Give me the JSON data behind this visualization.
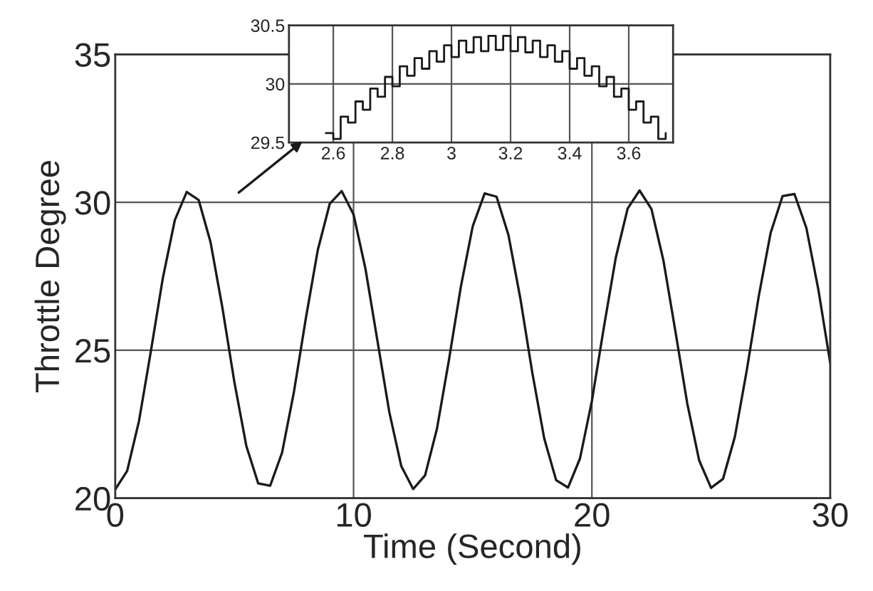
{
  "chart_data": [
    {
      "type": "line",
      "xlabel": "Time (Second)",
      "ylabel": "Throttle Degree",
      "xlim": [
        0,
        30
      ],
      "ylim": [
        20,
        35
      ],
      "xticks": [
        0,
        10,
        20,
        30
      ],
      "yticks": [
        20,
        25,
        30,
        35
      ],
      "grid": true,
      "line_style": "solid",
      "series": [
        {
          "color": "#1a1a1a",
          "x": [
            0,
            0.5,
            1,
            1.5,
            2,
            2.5,
            3,
            3.5,
            4,
            4.5,
            5,
            5.5,
            6,
            6.5,
            7,
            7.5,
            8,
            8.5,
            9,
            9.5,
            10,
            10.5,
            11,
            11.5,
            12,
            12.5,
            13,
            13.5,
            14,
            14.5,
            15,
            15.5,
            16,
            16.5,
            17,
            17.5,
            18,
            18.5,
            19,
            19.5,
            20,
            20.5,
            21,
            21.5,
            22,
            22.5,
            23,
            23.5,
            24,
            24.5,
            25,
            25.5,
            26,
            26.5,
            27,
            27.5,
            28,
            28.5,
            29,
            29.5,
            30
          ],
          "values": [
            20.3,
            20.92,
            22.62,
            24.99,
            27.45,
            29.4,
            30.35,
            30.08,
            28.65,
            26.42,
            23.92,
            21.77,
            20.5,
            20.42,
            21.54,
            23.6,
            26.09,
            28.39,
            29.95,
            30.38,
            29.59,
            27.75,
            25.33,
            22.91,
            21.09,
            20.31,
            20.77,
            22.35,
            24.66,
            27.14,
            29.19,
            30.3,
            30.19,
            28.89,
            26.74,
            24.24,
            22.02,
            20.61,
            20.36,
            21.34,
            23.29,
            25.76,
            28.12,
            29.79,
            30.4,
            29.77,
            28.04,
            25.66,
            23.21,
            21.28,
            20.35,
            20.65,
            22.08,
            24.33,
            26.82,
            28.97,
            30.21,
            30.28,
            29.13,
            27.06,
            24.57
          ]
        }
      ]
    },
    {
      "type": "step",
      "xlim": [
        2.45,
        3.75
      ],
      "ylim": [
        29.5,
        30.5
      ],
      "xticks": [
        2.6,
        2.8,
        3,
        3.2,
        3.4,
        3.6
      ],
      "yticks": [
        29.5,
        30,
        30.5
      ],
      "grid": true,
      "series": [
        {
          "color": "#1a1a1a",
          "x": [
            2.575,
            2.6,
            2.625,
            2.65,
            2.675,
            2.7,
            2.725,
            2.75,
            2.775,
            2.8,
            2.825,
            2.85,
            2.875,
            2.9,
            2.925,
            2.95,
            2.975,
            3.0,
            3.025,
            3.05,
            3.075,
            3.1,
            3.125,
            3.15,
            3.175,
            3.2,
            3.225,
            3.25,
            3.275,
            3.3,
            3.325,
            3.35,
            3.375,
            3.4,
            3.425,
            3.45,
            3.475,
            3.5,
            3.525,
            3.55,
            3.575,
            3.6,
            3.625,
            3.65,
            3.675,
            3.7,
            3.725
          ],
          "values": [
            29.58,
            29.53,
            29.72,
            29.67,
            29.85,
            29.78,
            29.96,
            29.89,
            30.06,
            29.98,
            30.15,
            30.07,
            30.22,
            30.13,
            30.28,
            30.19,
            30.33,
            30.23,
            30.37,
            30.27,
            30.4,
            30.28,
            30.41,
            30.29,
            30.41,
            30.28,
            30.4,
            30.27,
            30.37,
            30.23,
            30.33,
            30.19,
            30.28,
            30.13,
            30.22,
            30.07,
            30.15,
            29.98,
            30.06,
            29.89,
            29.96,
            29.78,
            29.85,
            29.67,
            29.72,
            29.53,
            29.58
          ]
        }
      ]
    }
  ]
}
